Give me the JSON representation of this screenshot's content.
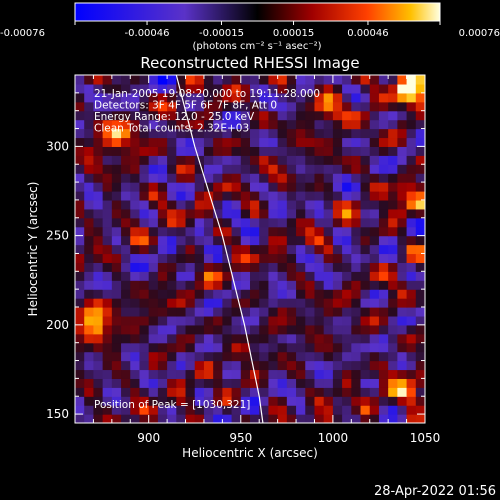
{
  "chart_data": {
    "type": "heatmap",
    "title": "Reconstructed RHESSI Image",
    "xlabel": "Heliocentric X (arcsec)",
    "ylabel": "Heliocentric Y (arcsec)",
    "xlim": [
      860,
      1050
    ],
    "ylim": [
      145,
      340
    ],
    "xticks": [
      900,
      950,
      1000,
      1050
    ],
    "yticks": [
      150,
      200,
      250,
      300
    ],
    "xtick_labels": [
      "900",
      "950",
      "1000",
      "1050"
    ],
    "ytick_labels": [
      "150",
      "200",
      "250",
      "300"
    ],
    "colorbar": {
      "min": -0.00076,
      "max": 0.00076,
      "tick_values": [
        -0.00076,
        -0.00046,
        -0.00015,
        0.00015,
        0.00046,
        0.00076
      ],
      "tick_labels": [
        "-0.00076",
        "-0.00046",
        "-0.00015",
        "0.00015",
        "0.00046",
        "0.00076"
      ],
      "units": "(photons cm⁻² s⁻¹ asec⁻²)"
    },
    "annotations": [
      "21-Jan-2005 19:08:20.000 to 19:11:28.000",
      "Detectors: 3F 4F 5F 6F 7F 8F, Att 0",
      "Energy Range: 12.0 - 25.0 keV",
      "Clean    Total counts: 2.32E+03"
    ],
    "peak_label": "Position of Peak = [1030,321]",
    "peak": [
      1030,
      321
    ],
    "limb_curve": [
      [
        915,
        340
      ],
      [
        925,
        300
      ],
      [
        940,
        250
      ],
      [
        952,
        200
      ],
      [
        960,
        160
      ],
      [
        962,
        145
      ]
    ],
    "hot_spots": [
      {
        "x": 1040,
        "y": 330,
        "v": 0.00076
      },
      {
        "x": 868,
        "y": 200,
        "v": 0.0006
      },
      {
        "x": 1040,
        "y": 157,
        "v": 0.0005
      },
      {
        "x": 880,
        "y": 300,
        "v": 0.00045
      },
      {
        "x": 995,
        "y": 320,
        "v": 0.0004
      },
      {
        "x": 1040,
        "y": 265,
        "v": 0.00035
      }
    ]
  },
  "timestamp": "28-Apr-2022 01:56"
}
